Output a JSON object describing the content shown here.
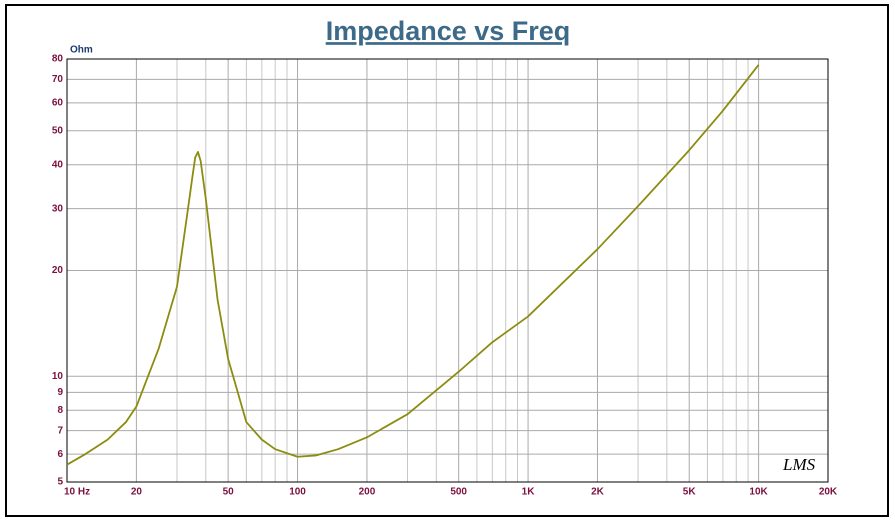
{
  "chart_data": {
    "type": "line",
    "title": "Impedance vs Freq",
    "ylabel": "Ohm",
    "annotation": "LMS",
    "xscale": "log",
    "yscale": "log",
    "grid": true,
    "color": "#8c8c10",
    "x": [
      10,
      12,
      15,
      18,
      20,
      25,
      30,
      33,
      35,
      36,
      37,
      38,
      40,
      45,
      50,
      60,
      70,
      80,
      100,
      120,
      150,
      200,
      300,
      500,
      700,
      1000,
      2000,
      3000,
      5000,
      7000,
      10000
    ],
    "values": [
      5.6,
      6.0,
      6.6,
      7.4,
      8.2,
      12,
      18,
      28,
      37,
      42,
      43.5,
      41,
      32,
      16.5,
      11.2,
      7.4,
      6.6,
      6.2,
      5.9,
      5.95,
      6.2,
      6.7,
      7.8,
      10.3,
      12.5,
      14.8,
      23,
      30.5,
      44,
      57,
      77
    ],
    "xlim": [
      10,
      20000
    ],
    "ylim": [
      5,
      80
    ],
    "xticks": [
      {
        "value": 10,
        "label": "10  Hz"
      },
      20,
      50,
      100,
      200,
      500,
      {
        "value": 1000,
        "label": "1K"
      },
      {
        "value": 2000,
        "label": "2K"
      },
      {
        "value": 5000,
        "label": "5K"
      },
      {
        "value": 10000,
        "label": "10K"
      },
      {
        "value": 20000,
        "label": "20K"
      }
    ],
    "xgrid_minor": [
      30,
      40,
      60,
      70,
      80,
      90,
      300,
      400,
      600,
      700,
      800,
      900,
      3000,
      4000,
      6000,
      7000,
      8000,
      9000
    ],
    "yticks": [
      5,
      6,
      7,
      8,
      9,
      10,
      20,
      30,
      40,
      50,
      60,
      70,
      80
    ]
  }
}
